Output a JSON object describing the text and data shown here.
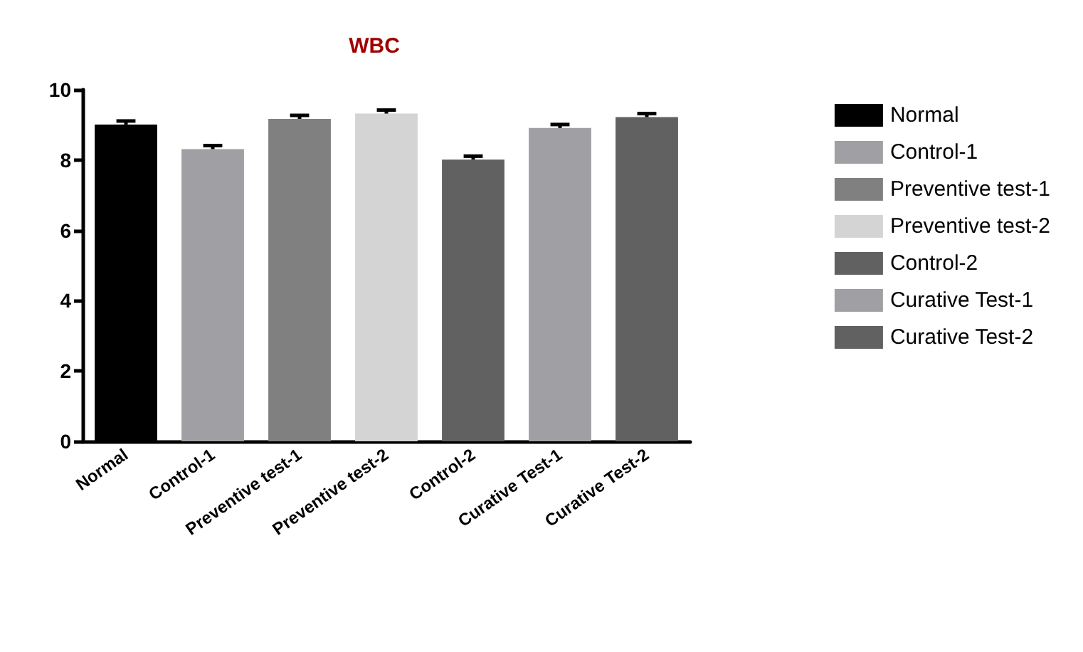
{
  "chart_data": {
    "type": "bar",
    "title": "WBC",
    "categories": [
      "Normal",
      "Control-1",
      "Preventive test-1",
      "Preventive test-2",
      "Control-2",
      "Curative Test-1",
      "Curative Test-2"
    ],
    "stacked": true,
    "series": [
      {
        "name": "Normal",
        "color": "#000000",
        "values": [
          9.01,
          null,
          null,
          null,
          null,
          null,
          null
        ],
        "errors": [
          0.1,
          null,
          null,
          null,
          null,
          null,
          null
        ]
      },
      {
        "name": "Control-1",
        "color": "#a0a0a4",
        "values": [
          null,
          8.31,
          null,
          null,
          null,
          null,
          null
        ],
        "errors": [
          null,
          0.1,
          null,
          null,
          null,
          null,
          null
        ]
      },
      {
        "name": "Preventive test-1",
        "color": "#808080",
        "values": [
          null,
          null,
          9.17,
          null,
          null,
          null,
          null
        ],
        "errors": [
          null,
          null,
          0.1,
          null,
          null,
          null,
          null
        ]
      },
      {
        "name": "Preventive test-2",
        "color": "#d4d4d4",
        "values": [
          null,
          null,
          null,
          9.32,
          null,
          null,
          null
        ],
        "errors": [
          null,
          null,
          null,
          0.1,
          null,
          null,
          null
        ]
      },
      {
        "name": "Control-2",
        "color": "#616161",
        "values": [
          null,
          null,
          null,
          null,
          8.01,
          null,
          null
        ],
        "errors": [
          null,
          null,
          null,
          null,
          0.1,
          null,
          null
        ]
      },
      {
        "name": "Curative Test-1",
        "color": "#a0a0a4",
        "values": [
          null,
          null,
          null,
          null,
          null,
          8.91,
          null
        ],
        "errors": [
          null,
          null,
          null,
          null,
          null,
          0.1,
          null
        ]
      },
      {
        "name": "Curative Test-2",
        "color": "#616161",
        "values": [
          null,
          null,
          null,
          null,
          null,
          null,
          9.22
        ],
        "errors": [
          null,
          null,
          null,
          null,
          null,
          null,
          0.1
        ]
      }
    ],
    "ylim": [
      0,
      10
    ],
    "yticks": [
      0,
      2,
      4,
      6,
      8,
      10
    ],
    "legend": "right"
  }
}
